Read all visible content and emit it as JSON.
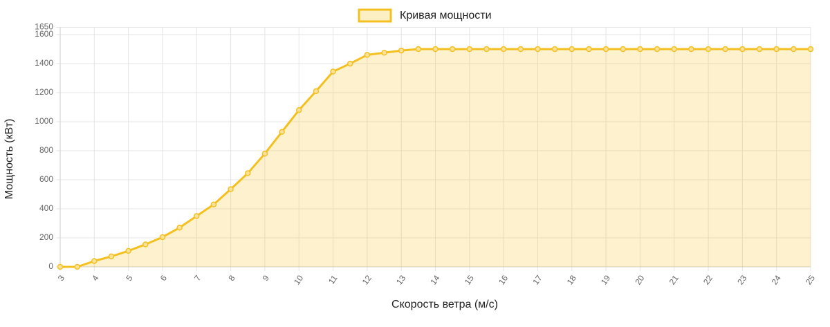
{
  "chart_data": {
    "type": "line",
    "x_label": "Скорость ветра (м/с)",
    "y_label": "Мощность (кВт)",
    "x": [
      3,
      3.5,
      4,
      4.5,
      5,
      5.5,
      6,
      6.5,
      7,
      7.5,
      8,
      8.5,
      9,
      9.5,
      10,
      10.5,
      11,
      11.5,
      12,
      12.5,
      13,
      13.5,
      14,
      14.5,
      15,
      15.5,
      16,
      16.5,
      17,
      17.5,
      18,
      18.5,
      19,
      19.5,
      20,
      20.5,
      21,
      21.5,
      22,
      22.5,
      23,
      23.5,
      24,
      24.5,
      25
    ],
    "series": [
      {
        "name": "Кривая мощности",
        "color": "#f4c020",
        "values": [
          0,
          0,
          40,
          72,
          110,
          155,
          205,
          270,
          350,
          430,
          535,
          645,
          780,
          930,
          1080,
          1210,
          1345,
          1400,
          1460,
          1475,
          1490,
          1500,
          1500,
          1500,
          1500,
          1500,
          1500,
          1500,
          1500,
          1500,
          1500,
          1500,
          1500,
          1500,
          1500,
          1500,
          1500,
          1500,
          1500,
          1500,
          1500,
          1500,
          1500,
          1500,
          1500
        ]
      }
    ],
    "xlim": [
      3,
      25
    ],
    "xticks": [
      3,
      4,
      5,
      6,
      7,
      8,
      9,
      10,
      11,
      12,
      13,
      14,
      15,
      16,
      17,
      18,
      19,
      20,
      21,
      22,
      23,
      24,
      25
    ],
    "ylim": [
      0,
      1650
    ],
    "yticks": [
      0,
      200,
      400,
      600,
      800,
      1000,
      1200,
      1400,
      1600,
      1650
    ],
    "grid": true,
    "fill": true,
    "legend": "top"
  }
}
